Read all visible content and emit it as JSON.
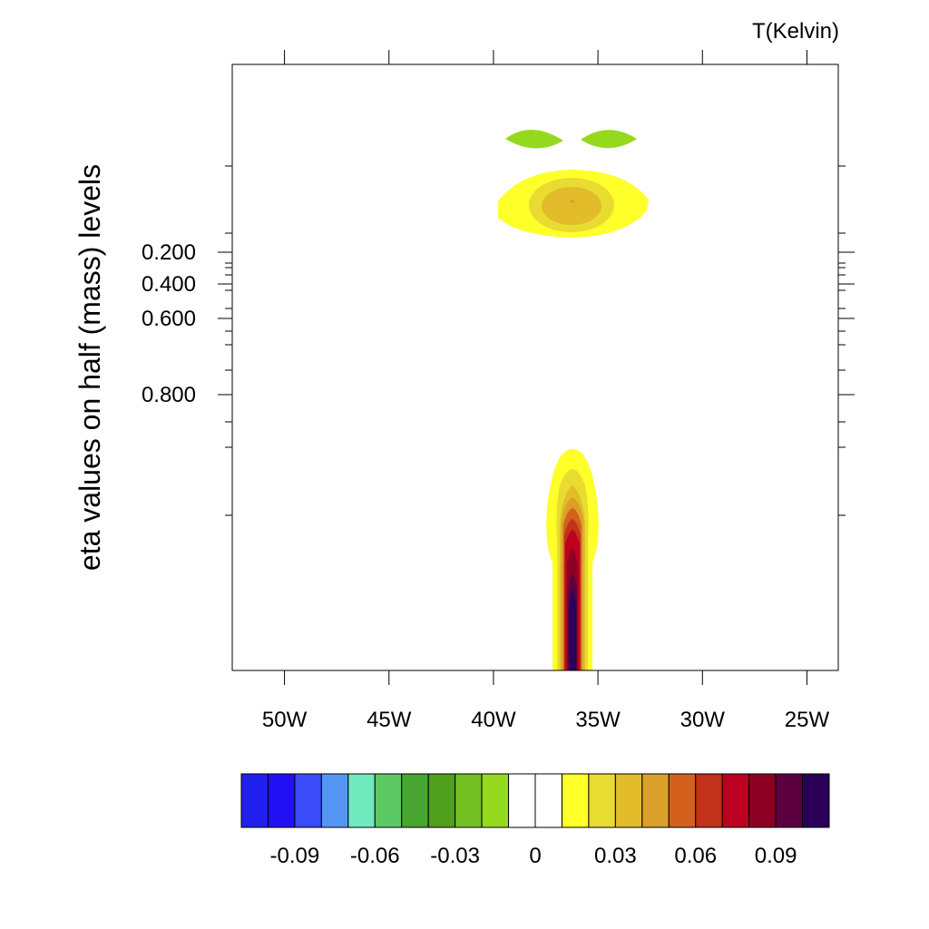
{
  "chart_data": {
    "type": "contour",
    "title": "",
    "units_label": "T(Kelvin)",
    "ylabel": "eta values on half (mass) levels",
    "xlabel": "",
    "x_range_deg_west": [
      52.5,
      23.5
    ],
    "x_ticks": [
      {
        "value": 50,
        "label": "50W"
      },
      {
        "value": 45,
        "label": "45W"
      },
      {
        "value": 40,
        "label": "40W"
      },
      {
        "value": 35,
        "label": "35W"
      },
      {
        "value": 30,
        "label": "30W"
      },
      {
        "value": 25,
        "label": "25W"
      }
    ],
    "y_range": [
      0.0,
      1.0
    ],
    "y_axis_reversed": true,
    "y_ticks": [
      {
        "value": 0.2,
        "label": "0.200"
      },
      {
        "value": 0.4,
        "label": "0.400"
      },
      {
        "value": 0.6,
        "label": "0.600"
      },
      {
        "value": 0.8,
        "label": "0.800"
      }
    ],
    "colorbar": {
      "labels": [
        {
          "value": -0.09,
          "label": "-0.09"
        },
        {
          "value": -0.06,
          "label": "-0.06"
        },
        {
          "value": -0.03,
          "label": "-0.03"
        },
        {
          "value": 0,
          "label": "0"
        },
        {
          "value": 0.03,
          "label": "0.03"
        },
        {
          "value": 0.06,
          "label": "0.06"
        },
        {
          "value": 0.09,
          "label": "0.09"
        }
      ],
      "levels": [
        -0.1,
        -0.09,
        -0.08,
        -0.07,
        -0.06,
        -0.05,
        -0.04,
        -0.03,
        -0.02,
        -0.01,
        0,
        0.01,
        0.02,
        0.03,
        0.04,
        0.05,
        0.06,
        0.07,
        0.08,
        0.09,
        0.1
      ],
      "colors": [
        "#1f1ff0",
        "#2410f4",
        "#3b4bf8",
        "#5596f5",
        "#6fe9bd",
        "#5cc964",
        "#47a530",
        "#4f9f1c",
        "#72bf22",
        "#95d91f",
        "#ffffff",
        "#ffffff",
        "#ffff2a",
        "#e8dc30",
        "#e2bc2a",
        "#dba02a",
        "#d3601c",
        "#c2311a",
        "#bc0020",
        "#8e0023",
        "#5c0040",
        "#2a0058"
      ]
    },
    "features": [
      {
        "name": "upper-left negative lobe",
        "lon_w": 37.7,
        "eta": 0.07,
        "value_class": -0.01
      },
      {
        "name": "upper-right negative lobe",
        "lon_w": 34.2,
        "eta": 0.07,
        "value_class": -0.01
      },
      {
        "name": "upper positive anomaly",
        "lon_w": 36.0,
        "eta": 0.13,
        "peak": 0.04
      },
      {
        "name": "lower positive plume",
        "lon_w": 36.0,
        "eta": 0.9,
        "peak": 0.1
      }
    ]
  }
}
